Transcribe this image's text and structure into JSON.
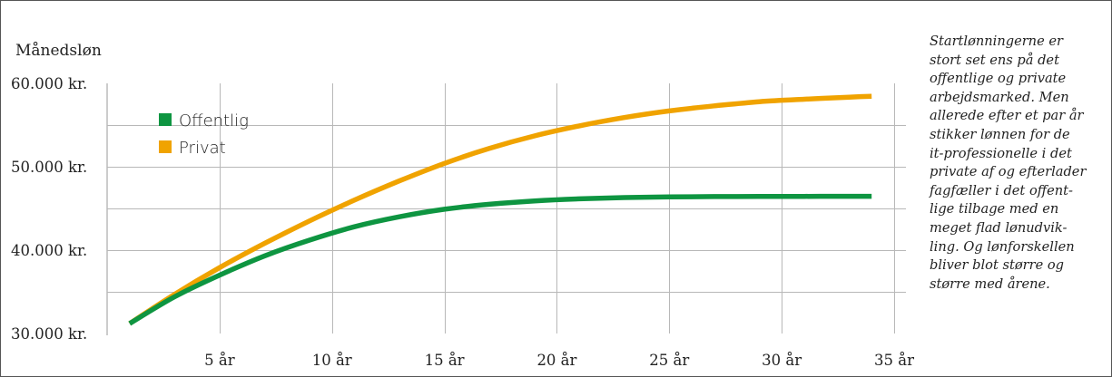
{
  "chart_data": {
    "type": "line",
    "ylabel": "Månedsløn",
    "x_tick_labels": [
      "5 år",
      "10 år",
      "15 år",
      "20 år",
      "25 år",
      "30 år",
      "35 år"
    ],
    "x_ticks": [
      5,
      10,
      15,
      20,
      25,
      30,
      35
    ],
    "y_tick_labels": [
      "60.000 kr.",
      "50.000 kr.",
      "40.000 kr.",
      "30.000 kr."
    ],
    "y_ticks": [
      60000,
      50000,
      40000,
      30000
    ],
    "xlim": [
      0,
      35
    ],
    "ylim": [
      30000,
      60000
    ],
    "grid": true,
    "legend_position": "top-left",
    "series": [
      {
        "name": "Offentlig",
        "color": "#0e9541",
        "x": [
          1,
          3,
          5,
          7,
          9,
          11,
          13,
          15,
          17,
          19,
          21,
          23,
          25,
          27,
          29,
          31,
          33,
          34
        ],
        "values": [
          31200,
          34400,
          37000,
          39300,
          41200,
          42800,
          44000,
          44900,
          45500,
          45900,
          46150,
          46300,
          46380,
          46420,
          46440,
          46450,
          46460,
          46460
        ]
      },
      {
        "name": "Privat",
        "color": "#f0a300",
        "x": [
          1,
          3,
          5,
          7,
          9,
          11,
          13,
          15,
          17,
          19,
          21,
          23,
          25,
          27,
          29,
          31,
          33,
          34
        ],
        "values": [
          31200,
          34700,
          37900,
          40800,
          43500,
          46000,
          48300,
          50400,
          52200,
          53700,
          54900,
          55900,
          56700,
          57300,
          57800,
          58100,
          58350,
          58450
        ]
      }
    ]
  },
  "note_lines": [
    "Startlønningerne er",
    "stort set ens på det",
    "offentlige og private",
    "arbejdsmarked. Men",
    "allerede efter et par år",
    "stikker lønnen for de",
    "it-professionelle i det",
    "private af og efterlader",
    "fagfæller i det offent-",
    "lige tilbage med en",
    "meget flad lønudvik-",
    "ling. Og lønforskellen",
    "bliver blot større og",
    "større med årene."
  ]
}
